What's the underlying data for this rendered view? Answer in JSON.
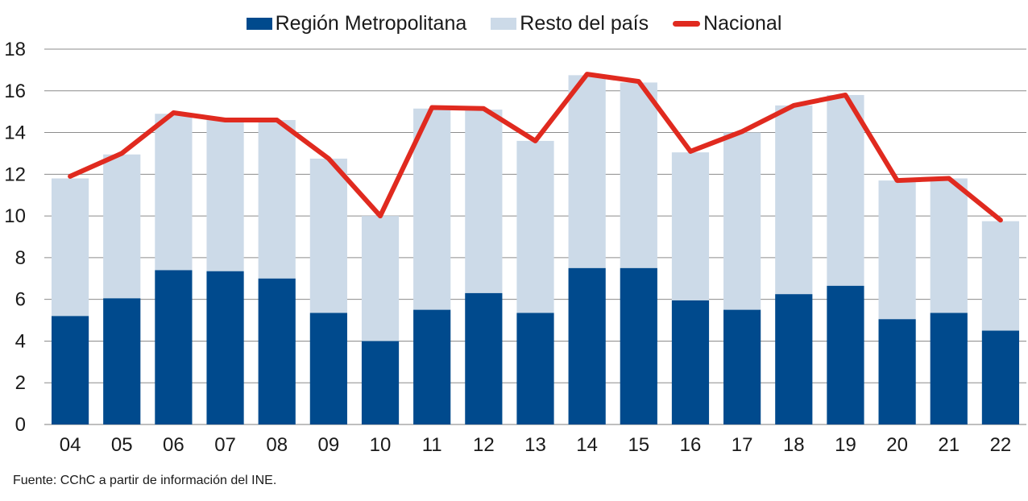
{
  "chart_data": {
    "type": "bar",
    "stacked": true,
    "categories": [
      "04",
      "05",
      "06",
      "07",
      "08",
      "09",
      "10",
      "11",
      "12",
      "13",
      "14",
      "15",
      "16",
      "17",
      "18",
      "19",
      "20",
      "21",
      "22"
    ],
    "series": [
      {
        "name": "Región Metropolitana",
        "kind": "bar",
        "color": "#004a8d",
        "values": [
          5.2,
          6.05,
          7.4,
          7.35,
          7.0,
          5.35,
          4.0,
          5.5,
          6.3,
          5.35,
          7.5,
          7.5,
          5.95,
          5.5,
          6.25,
          6.65,
          5.05,
          5.35,
          4.5
        ]
      },
      {
        "name": "Resto del país",
        "kind": "bar",
        "color": "#ccdae8",
        "values": [
          6.6,
          6.9,
          7.5,
          7.25,
          7.6,
          7.4,
          6.0,
          9.65,
          8.8,
          8.25,
          9.25,
          8.9,
          7.1,
          8.5,
          9.05,
          9.15,
          6.65,
          6.45,
          5.25
        ]
      },
      {
        "name": "Nacional",
        "kind": "line",
        "color": "#e02a1f",
        "values": [
          11.9,
          13.0,
          14.95,
          14.6,
          14.6,
          12.75,
          10.0,
          15.2,
          15.15,
          13.6,
          16.8,
          16.45,
          13.1,
          14.05,
          15.3,
          15.8,
          11.7,
          11.8,
          9.8
        ]
      }
    ],
    "ylim": [
      0,
      18
    ],
    "yticks": [
      "0",
      "2",
      "4",
      "6",
      "8",
      "10",
      "12",
      "14",
      "16",
      "18"
    ],
    "grid": true,
    "legend": "top-center",
    "title": "",
    "xlabel": "",
    "ylabel": ""
  },
  "legend": {
    "items": [
      {
        "label": "Región Metropolitana",
        "color": "#004a8d"
      },
      {
        "label": "Resto del país",
        "color": "#ccdae8"
      },
      {
        "label": "Nacional",
        "color": "#e02a1f"
      }
    ]
  },
  "source": "Fuente: CChC a partir de información del INE."
}
